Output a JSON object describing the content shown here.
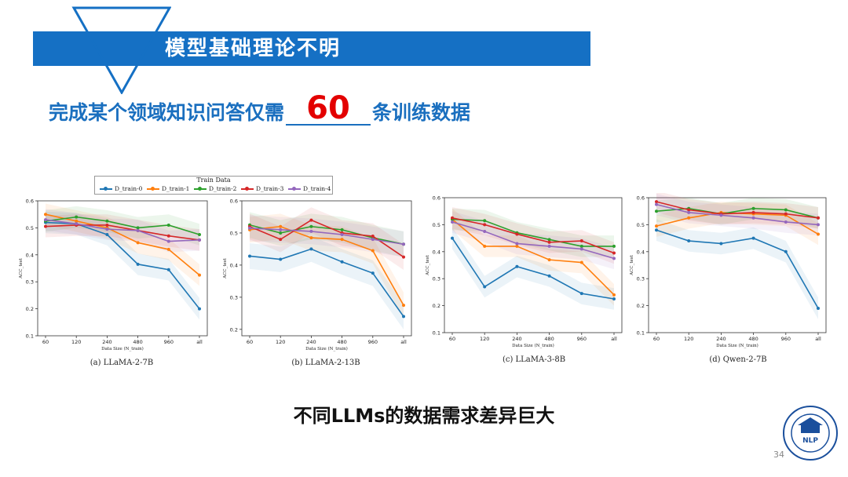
{
  "slide": {
    "section_title": "模型基础理论不明",
    "headline_pre": "完成某个领域知识问答仅需",
    "headline_number": "60",
    "headline_post": "条训练数据",
    "footer_text": "不同LLMs的数据需求差异巨大",
    "page_number": "34",
    "banner_color": "#1570c4",
    "logo": {
      "icon": "fudan-university-nlp-seal",
      "text": "FUDAN UNIVERSITY NATURAL LANGUAGE PROCESSING NLP"
    }
  },
  "legend": {
    "title": "Train Data",
    "entries": [
      {
        "label": "D_train-0",
        "color": "#1f77b4"
      },
      {
        "label": "D_train-1",
        "color": "#ff7f0e"
      },
      {
        "label": "D_train-2",
        "color": "#2ca02c"
      },
      {
        "label": "D_train-3",
        "color": "#d62728"
      },
      {
        "label": "D_train-4",
        "color": "#9467bd"
      }
    ]
  },
  "chart_data": [
    {
      "type": "line",
      "caption": "(a) LLaMA-2-7B",
      "xlabel": "Data Size (N_train)",
      "ylabel": "ACC_test",
      "categories": [
        "60",
        "120",
        "240",
        "480",
        "960",
        "all"
      ],
      "yticks": [
        "0.1",
        "0.2",
        "0.3",
        "0.4",
        "0.5",
        "0.6"
      ],
      "ylim": [
        0.1,
        0.6
      ],
      "series": [
        {
          "name": "D_train-0",
          "color": "#1f77b4",
          "values": [
            0.52,
            0.515,
            0.475,
            0.365,
            0.345,
            0.2
          ]
        },
        {
          "name": "D_train-1",
          "color": "#ff7f0e",
          "values": [
            0.55,
            0.525,
            0.5,
            0.445,
            0.42,
            0.325
          ]
        },
        {
          "name": "D_train-2",
          "color": "#2ca02c",
          "values": [
            0.525,
            0.54,
            0.525,
            0.5,
            0.51,
            0.475
          ]
        },
        {
          "name": "D_train-3",
          "color": "#d62728",
          "values": [
            0.505,
            0.51,
            0.51,
            0.49,
            0.47,
            0.455
          ]
        },
        {
          "name": "D_train-4",
          "color": "#9467bd",
          "values": [
            0.53,
            0.515,
            0.495,
            0.49,
            0.45,
            0.455
          ]
        }
      ]
    },
    {
      "type": "line",
      "caption": "(b) LLaMA-2-13B",
      "xlabel": "Data Size (N_train)",
      "ylabel": "ACC_test",
      "categories": [
        "60",
        "120",
        "240",
        "480",
        "960",
        "all"
      ],
      "yticks": [
        "0.2",
        "0.3",
        "0.4",
        "0.5",
        "0.6"
      ],
      "ylim": [
        0.18,
        0.6
      ],
      "series": [
        {
          "name": "D_train-0",
          "color": "#1f77b4",
          "values": [
            0.428,
            0.418,
            0.45,
            0.41,
            0.375,
            0.24
          ]
        },
        {
          "name": "D_train-1",
          "color": "#ff7f0e",
          "values": [
            0.51,
            0.52,
            0.485,
            0.48,
            0.445,
            0.275
          ]
        },
        {
          "name": "D_train-2",
          "color": "#2ca02c",
          "values": [
            0.525,
            0.5,
            0.52,
            0.51,
            0.485,
            0.465
          ]
        },
        {
          "name": "D_train-3",
          "color": "#d62728",
          "values": [
            0.52,
            0.48,
            0.54,
            0.5,
            0.49,
            0.425
          ]
        },
        {
          "name": "D_train-4",
          "color": "#9467bd",
          "values": [
            0.515,
            0.51,
            0.505,
            0.495,
            0.48,
            0.465
          ]
        }
      ]
    },
    {
      "type": "line",
      "caption": "(c) LLaMA-3-8B",
      "xlabel": "Data Size (N_train)",
      "ylabel": "ACC_test",
      "categories": [
        "60",
        "120",
        "240",
        "480",
        "960",
        "all"
      ],
      "yticks": [
        "0.1",
        "0.2",
        "0.3",
        "0.4",
        "0.5",
        "0.6"
      ],
      "ylim": [
        0.1,
        0.6
      ],
      "series": [
        {
          "name": "D_train-0",
          "color": "#1f77b4",
          "values": [
            0.45,
            0.27,
            0.345,
            0.31,
            0.245,
            0.225
          ]
        },
        {
          "name": "D_train-1",
          "color": "#ff7f0e",
          "values": [
            0.52,
            0.42,
            0.42,
            0.37,
            0.36,
            0.24
          ]
        },
        {
          "name": "D_train-2",
          "color": "#2ca02c",
          "values": [
            0.52,
            0.515,
            0.47,
            0.445,
            0.42,
            0.42
          ]
        },
        {
          "name": "D_train-3",
          "color": "#d62728",
          "values": [
            0.525,
            0.5,
            0.465,
            0.435,
            0.44,
            0.395
          ]
        },
        {
          "name": "D_train-4",
          "color": "#9467bd",
          "values": [
            0.51,
            0.475,
            0.43,
            0.42,
            0.41,
            0.375
          ]
        }
      ]
    },
    {
      "type": "line",
      "caption": "(d) Qwen-2-7B",
      "xlabel": "Data Size (N_train)",
      "ylabel": "ACC_test",
      "categories": [
        "60",
        "120",
        "240",
        "480",
        "960",
        "all"
      ],
      "yticks": [
        "0.1",
        "0.2",
        "0.3",
        "0.4",
        "0.5",
        "0.6"
      ],
      "ylim": [
        0.1,
        0.6
      ],
      "series": [
        {
          "name": "D_train-0",
          "color": "#1f77b4",
          "values": [
            0.48,
            0.44,
            0.43,
            0.45,
            0.4,
            0.19
          ]
        },
        {
          "name": "D_train-1",
          "color": "#ff7f0e",
          "values": [
            0.495,
            0.525,
            0.545,
            0.54,
            0.535,
            0.465
          ]
        },
        {
          "name": "D_train-2",
          "color": "#2ca02c",
          "values": [
            0.55,
            0.56,
            0.54,
            0.56,
            0.555,
            0.525
          ]
        },
        {
          "name": "D_train-3",
          "color": "#d62728",
          "values": [
            0.585,
            0.555,
            0.54,
            0.545,
            0.54,
            0.525
          ]
        },
        {
          "name": "D_train-4",
          "color": "#9467bd",
          "values": [
            0.575,
            0.545,
            0.535,
            0.525,
            0.51,
            0.5
          ]
        }
      ]
    }
  ]
}
